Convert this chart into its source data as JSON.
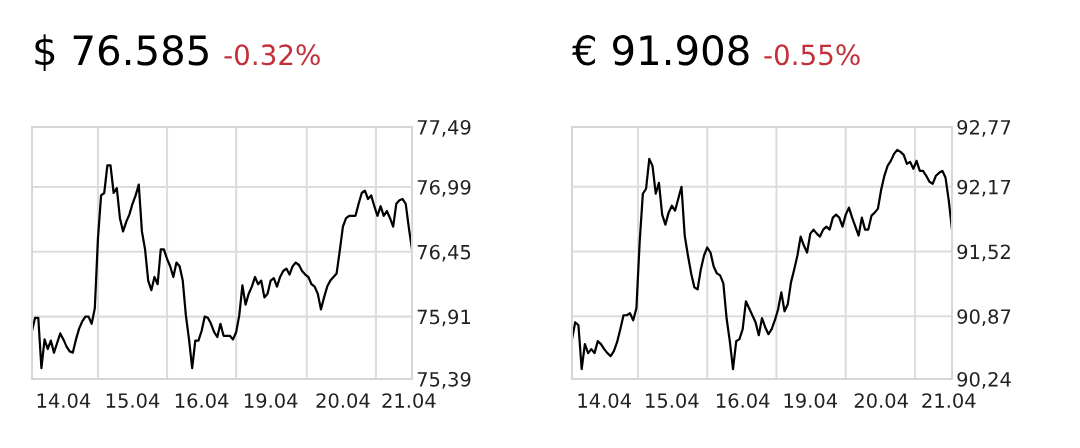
{
  "chart_data": [
    {
      "type": "line",
      "title": "$ 76.585",
      "subtitle": "-0.32%",
      "ylim": [
        75.39,
        77.49
      ],
      "grid": true,
      "marker": "none",
      "line_style": "solid",
      "categories": [
        null,
        null,
        null,
        null,
        null,
        null,
        null,
        null,
        null,
        null,
        "14.04",
        null,
        null,
        null,
        null,
        null,
        null,
        null,
        null,
        null,
        null,
        null,
        null,
        null,
        null,
        null,
        null,
        null,
        null,
        null,
        null,
        null,
        "15.04",
        null,
        null,
        null,
        null,
        null,
        null,
        null,
        null,
        null,
        null,
        null,
        null,
        null,
        null,
        null,
        null,
        null,
        null,
        null,
        null,
        null,
        "16.04",
        null,
        null,
        null,
        null,
        null,
        null,
        null,
        null,
        null,
        null,
        null,
        null,
        null,
        null,
        null,
        null,
        null,
        null,
        null,
        null,
        null,
        "19.04",
        null,
        null,
        null,
        null,
        null,
        null,
        null,
        null,
        null,
        null,
        null,
        null,
        null,
        null,
        null,
        null,
        null,
        null,
        null,
        null,
        null,
        null,
        "20.04",
        null,
        null,
        null,
        null,
        null,
        null,
        null,
        null,
        null,
        null,
        null,
        null,
        null,
        null,
        null,
        null,
        null,
        null,
        null,
        null,
        "21.04",
        null
      ],
      "yticks": [
        {
          "value": 75.39,
          "label": "75,39"
        },
        {
          "value": 75.91,
          "label": "75,91"
        },
        {
          "value": 76.45,
          "label": "76,45"
        },
        {
          "value": 76.99,
          "label": "76,99"
        },
        {
          "value": 77.49,
          "label": "77,49"
        }
      ],
      "series": [
        {
          "color": "#000000",
          "values": [
            75.79,
            75.9,
            75.9,
            75.48,
            75.72,
            75.64,
            75.71,
            75.61,
            75.69,
            75.77,
            75.72,
            75.66,
            75.62,
            75.61,
            75.72,
            75.81,
            75.87,
            75.91,
            75.91,
            75.85,
            75.98,
            76.56,
            76.92,
            76.94,
            77.17,
            77.17,
            76.94,
            76.98,
            76.73,
            76.62,
            76.7,
            76.76,
            76.85,
            76.92,
            77.01,
            76.62,
            76.47,
            76.21,
            76.13,
            76.24,
            76.18,
            76.47,
            76.47,
            76.39,
            76.33,
            76.24,
            76.36,
            76.33,
            76.21,
            75.92,
            75.72,
            75.48,
            75.71,
            75.71,
            75.79,
            75.91,
            75.9,
            75.85,
            75.78,
            75.74,
            75.85,
            75.75,
            75.75,
            75.75,
            75.72,
            75.78,
            75.92,
            76.17,
            76.01,
            76.1,
            76.16,
            76.24,
            76.18,
            76.21,
            76.07,
            76.1,
            76.21,
            76.23,
            76.16,
            76.24,
            76.29,
            76.31,
            76.26,
            76.33,
            76.36,
            76.34,
            76.29,
            76.26,
            76.24,
            76.18,
            76.16,
            76.1,
            75.97,
            76.07,
            76.16,
            76.21,
            76.24,
            76.27,
            76.46,
            76.66,
            76.73,
            76.75,
            76.75,
            76.75,
            76.85,
            76.94,
            76.96,
            76.89,
            76.92,
            76.83,
            76.75,
            76.83,
            76.75,
            76.79,
            76.73,
            76.66,
            76.85,
            76.88,
            76.89,
            76.85,
            76.65,
            76.47
          ]
        }
      ]
    },
    {
      "type": "line",
      "title": "€ 91.908",
      "subtitle": "-0.55%",
      "ylim": [
        90.24,
        92.77
      ],
      "grid": true,
      "marker": "none",
      "line_style": "solid",
      "categories": [
        null,
        null,
        null,
        null,
        null,
        null,
        null,
        null,
        null,
        null,
        "14.04",
        null,
        null,
        null,
        null,
        null,
        null,
        null,
        null,
        null,
        null,
        null,
        null,
        null,
        null,
        null,
        null,
        null,
        null,
        null,
        null,
        "15.04",
        null,
        null,
        null,
        null,
        null,
        null,
        null,
        null,
        null,
        null,
        null,
        null,
        null,
        null,
        null,
        null,
        null,
        null,
        null,
        null,
        null,
        "16.04",
        null,
        null,
        null,
        null,
        null,
        null,
        null,
        null,
        null,
        null,
        null,
        null,
        null,
        null,
        null,
        null,
        null,
        null,
        null,
        null,
        "19.04",
        null,
        null,
        null,
        null,
        null,
        null,
        null,
        null,
        null,
        null,
        null,
        null,
        null,
        null,
        null,
        null,
        null,
        null,
        null,
        null,
        null,
        "20.04",
        null,
        null,
        null,
        null,
        null,
        null,
        null,
        null,
        null,
        null,
        null,
        null,
        null,
        null,
        null,
        null,
        null,
        null,
        null,
        null,
        "21.04",
        null
      ],
      "yticks": [
        {
          "value": 90.24,
          "label": "90,24"
        },
        {
          "value": 90.87,
          "label": "90,87"
        },
        {
          "value": 91.52,
          "label": "91,52"
        },
        {
          "value": 92.17,
          "label": "92,17"
        },
        {
          "value": 92.77,
          "label": "92,77"
        }
      ],
      "series": [
        {
          "color": "#000000",
          "values": [
            90.64,
            90.81,
            90.78,
            90.34,
            90.59,
            90.5,
            90.54,
            90.5,
            90.62,
            90.59,
            90.54,
            90.5,
            90.47,
            90.52,
            90.61,
            90.74,
            90.88,
            90.88,
            90.9,
            90.83,
            90.95,
            91.61,
            92.1,
            92.15,
            92.45,
            92.38,
            92.1,
            92.21,
            91.89,
            91.79,
            91.91,
            91.98,
            91.93,
            92.05,
            92.17,
            91.68,
            91.48,
            91.3,
            91.16,
            91.14,
            91.34,
            91.48,
            91.56,
            91.51,
            91.37,
            91.3,
            91.28,
            91.2,
            90.85,
            90.62,
            90.34,
            90.62,
            90.64,
            90.74,
            91.02,
            90.95,
            90.88,
            90.81,
            90.68,
            90.85,
            90.76,
            90.69,
            90.74,
            90.83,
            90.94,
            91.11,
            90.92,
            90.99,
            91.21,
            91.34,
            91.48,
            91.67,
            91.58,
            91.51,
            91.7,
            91.74,
            91.7,
            91.67,
            91.74,
            91.77,
            91.74,
            91.86,
            91.89,
            91.86,
            91.77,
            91.89,
            91.96,
            91.86,
            91.77,
            91.68,
            91.86,
            91.74,
            91.74,
            91.88,
            91.91,
            91.95,
            92.14,
            92.28,
            92.38,
            92.43,
            92.5,
            92.54,
            92.52,
            92.49,
            92.4,
            92.42,
            92.35,
            92.43,
            92.33,
            92.33,
            92.28,
            92.22,
            92.2,
            92.28,
            92.31,
            92.33,
            92.26,
            92.03,
            91.74
          ]
        }
      ]
    }
  ]
}
